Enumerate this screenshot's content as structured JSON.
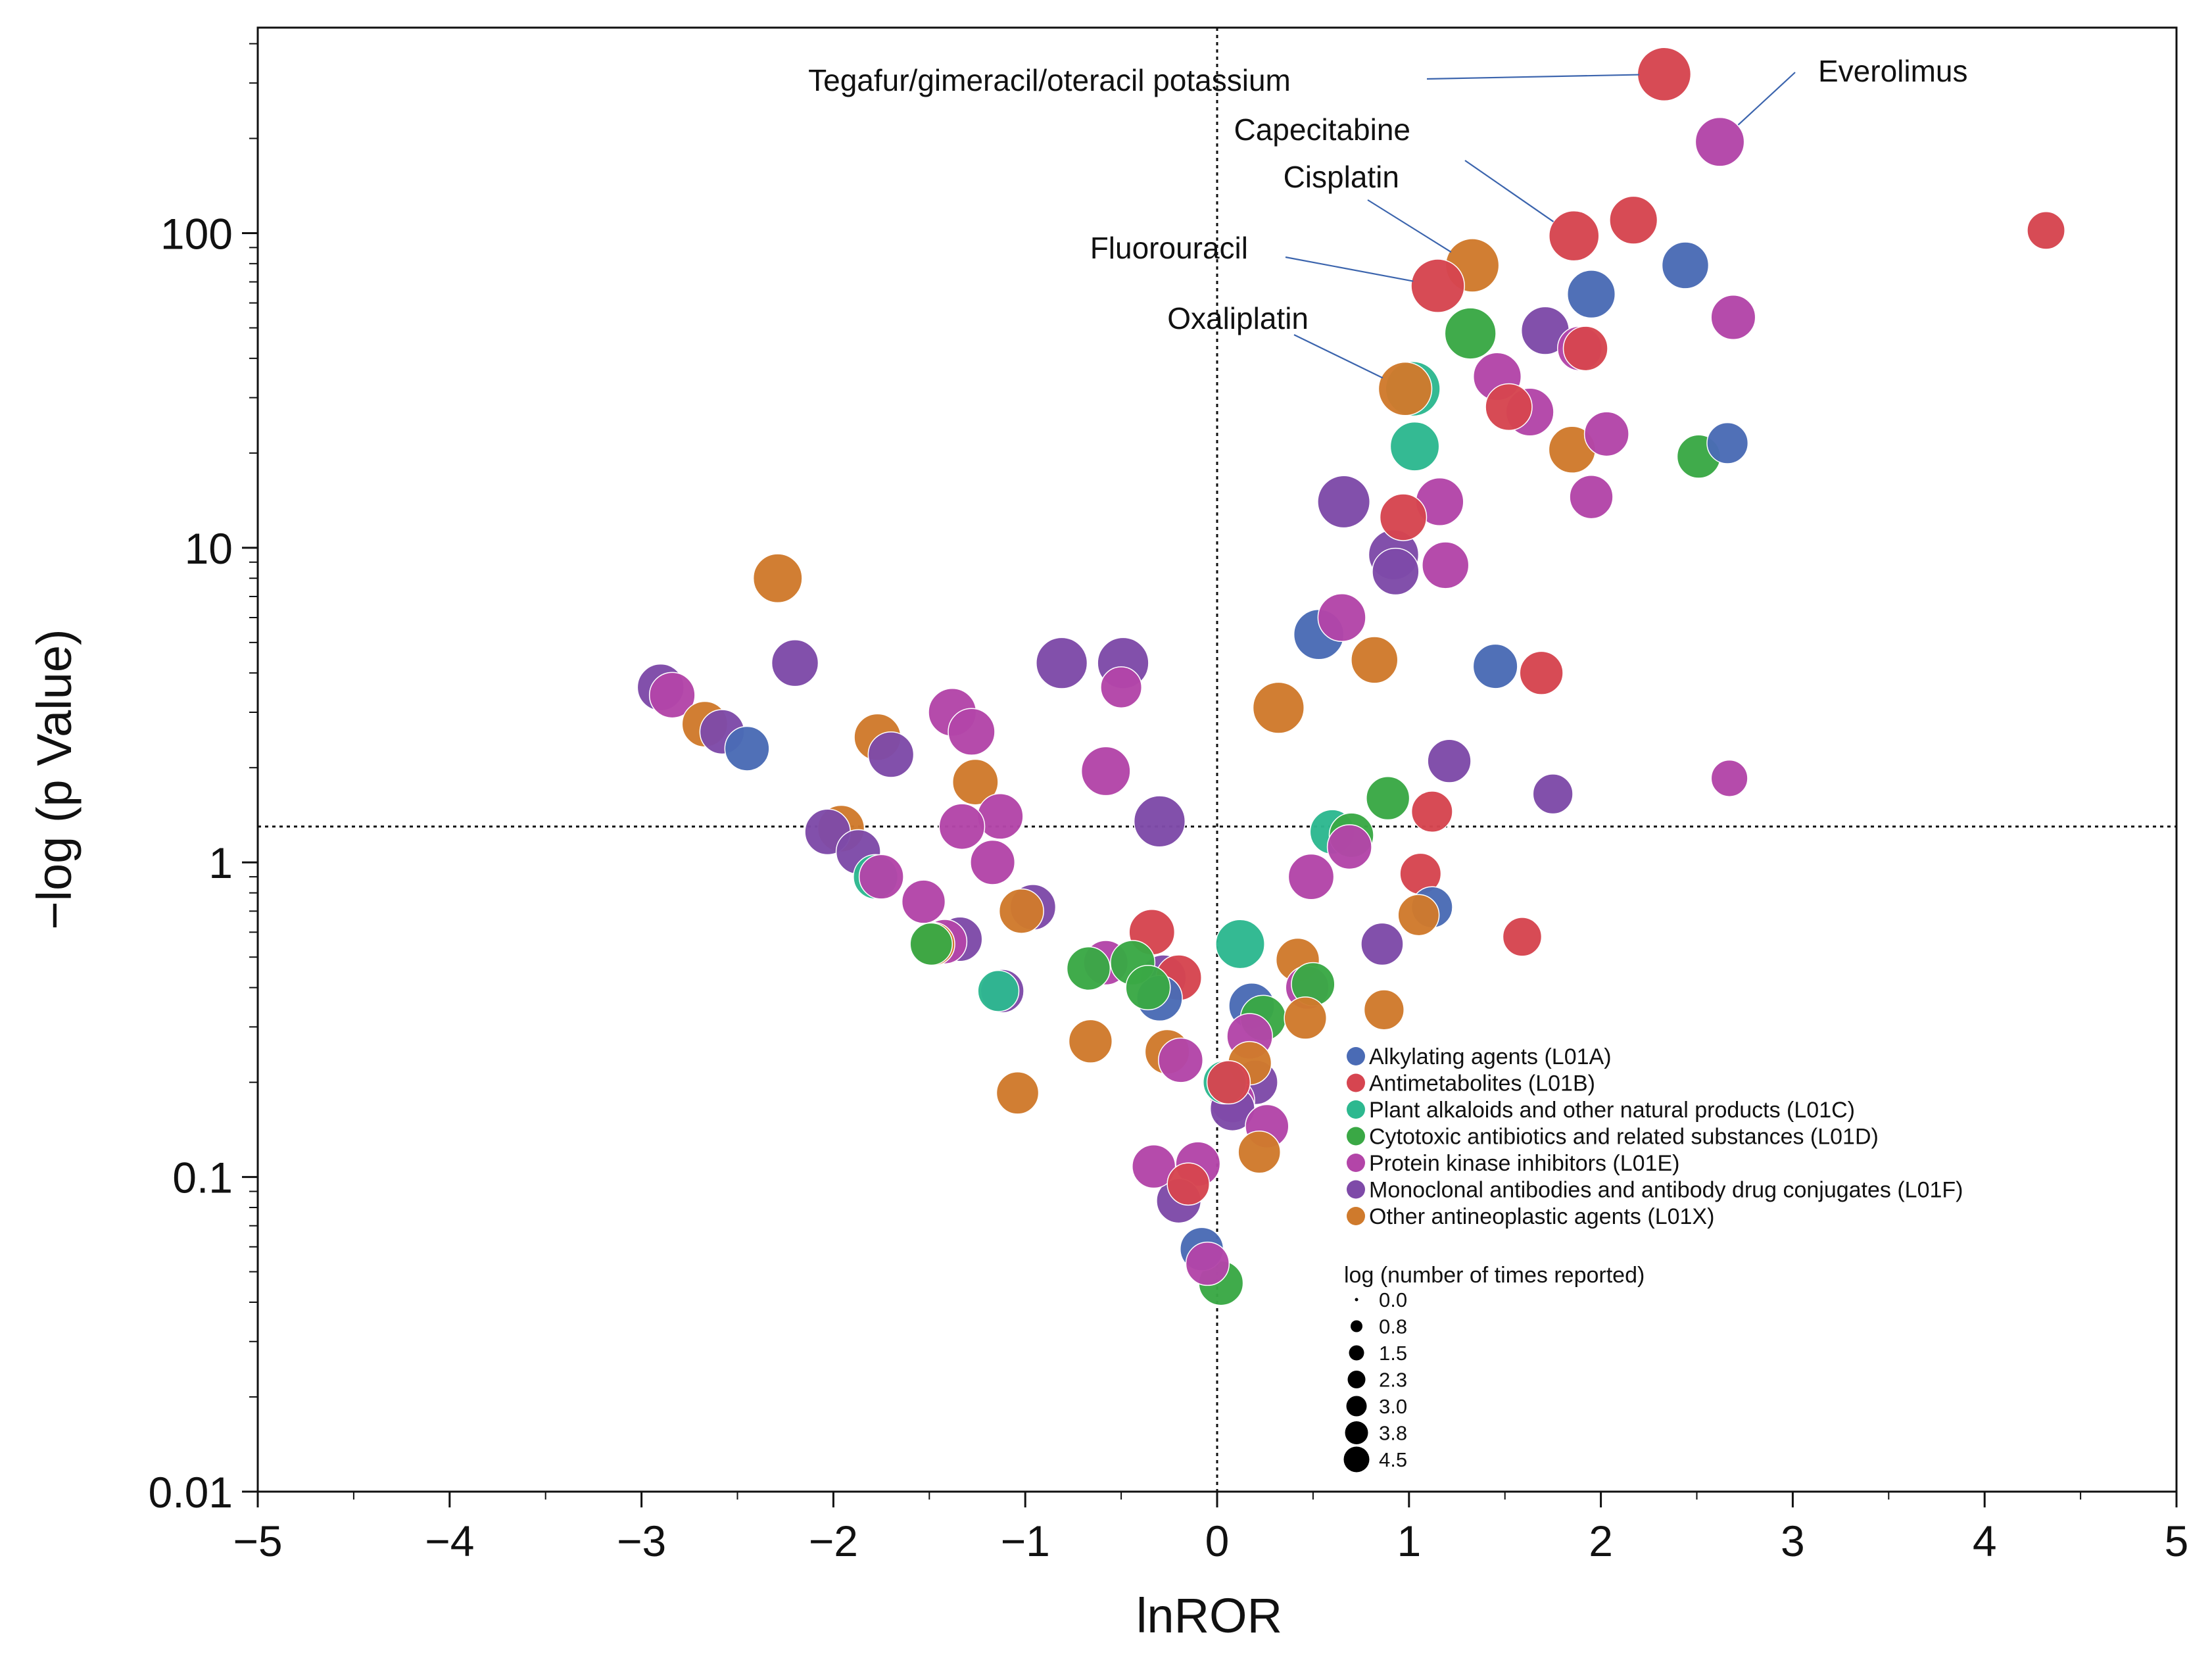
{
  "chart_data": {
    "type": "scatter",
    "subtype": "volcano-bubble",
    "title": "",
    "xlabel": "lnROR",
    "ylabel": "−log (p Value)",
    "xlim": [
      -5,
      5
    ],
    "ylim": [
      0.01,
      450
    ],
    "yscale": "log",
    "x_ticks": [
      -5,
      -4,
      -3,
      -2,
      -1,
      0,
      1,
      2,
      3,
      4,
      5
    ],
    "x_tick_labels": [
      "−5",
      "−4",
      "−3",
      "−2",
      "−1",
      "0",
      "1",
      "2",
      "3",
      "4",
      "5"
    ],
    "y_ticks": [
      0.01,
      0.1,
      1,
      10,
      100
    ],
    "y_tick_labels": [
      "0.01",
      "0.1",
      "1",
      "10",
      "100"
    ],
    "reference_lines": {
      "x": 0,
      "y": 1.3
    },
    "grid": false,
    "categories": [
      {
        "code": "L01A",
        "label": "Alkylating agents (L01A)",
        "color": "#4a6bb5"
      },
      {
        "code": "L01B",
        "label": "Antimetabolites (L01B)",
        "color": "#d64550"
      },
      {
        "code": "L01C",
        "label": "Plant alkaloids and other natural products (L01C)",
        "color": "#2db88f"
      },
      {
        "code": "L01D",
        "label": "Cytotoxic antibiotics and related substances (L01D)",
        "color": "#3aa845"
      },
      {
        "code": "L01E",
        "label": "Protein kinase inhibitors (L01E)",
        "color": "#b345a8"
      },
      {
        "code": "L01F",
        "label": "Monoclonal antibodies and antibody drug conjugates (L01F)",
        "color": "#7e4aa8"
      },
      {
        "code": "L01X",
        "label": "Other antineoplastic agents (L01X)",
        "color": "#cf7a2c"
      }
    ],
    "size_legend": {
      "title": "log (number of times reported)",
      "values": [
        "0.0",
        "0.8",
        "1.5",
        "2.3",
        "3.0",
        "3.8",
        "4.5"
      ]
    },
    "legend_position": "lower-center",
    "annotations": [
      {
        "text": "Tegafur/gimeracil/oteracil potassium",
        "x": 2.33,
        "y": 320
      },
      {
        "text": "Everolimus",
        "x": 2.62,
        "y": 195
      },
      {
        "text": "Capecitabine",
        "x": 1.86,
        "y": 98
      },
      {
        "text": "Cisplatin",
        "x": 1.33,
        "y": 79
      },
      {
        "text": "Fluorouracil",
        "x": 1.15,
        "y": 68
      },
      {
        "text": "Oxaliplatin",
        "x": 0.98,
        "y": 32
      }
    ],
    "points": [
      {
        "x": 2.33,
        "y": 320,
        "cat": "L01B",
        "size": 4.3
      },
      {
        "x": 2.62,
        "y": 195,
        "cat": "L01E",
        "size": 3.9
      },
      {
        "x": 4.32,
        "y": 102,
        "cat": "L01B",
        "size": 2.9
      },
      {
        "x": 2.17,
        "y": 110,
        "cat": "L01B",
        "size": 3.8
      },
      {
        "x": 1.86,
        "y": 98,
        "cat": "L01B",
        "size": 4.0
      },
      {
        "x": 2.44,
        "y": 79,
        "cat": "L01A",
        "size": 3.7
      },
      {
        "x": 1.33,
        "y": 79,
        "cat": "L01X",
        "size": 4.3
      },
      {
        "x": 1.15,
        "y": 68,
        "cat": "L01B",
        "size": 4.3
      },
      {
        "x": 1.95,
        "y": 64,
        "cat": "L01A",
        "size": 3.8
      },
      {
        "x": 2.69,
        "y": 54,
        "cat": "L01E",
        "size": 3.5
      },
      {
        "x": 1.32,
        "y": 48,
        "cat": "L01D",
        "size": 4.1
      },
      {
        "x": 1.71,
        "y": 49,
        "cat": "L01F",
        "size": 3.8
      },
      {
        "x": 1.89,
        "y": 43,
        "cat": "L01E",
        "size": 3.5
      },
      {
        "x": 1.92,
        "y": 43,
        "cat": "L01B",
        "size": 3.5
      },
      {
        "x": 1.46,
        "y": 35,
        "cat": "L01E",
        "size": 3.8
      },
      {
        "x": 1.02,
        "y": 32,
        "cat": "L01C",
        "size": 4.4
      },
      {
        "x": 0.98,
        "y": 32,
        "cat": "L01X",
        "size": 4.3
      },
      {
        "x": 1.52,
        "y": 28,
        "cat": "L01B",
        "size": 3.7
      },
      {
        "x": 1.63,
        "y": 27,
        "cat": "L01E",
        "size": 3.8
      },
      {
        "x": 2.03,
        "y": 23,
        "cat": "L01E",
        "size": 3.5
      },
      {
        "x": 2.66,
        "y": 21.5,
        "cat": "L01A",
        "size": 3.2
      },
      {
        "x": 1.03,
        "y": 21,
        "cat": "L01C",
        "size": 3.9
      },
      {
        "x": 1.85,
        "y": 20.5,
        "cat": "L01X",
        "size": 3.7
      },
      {
        "x": 2.51,
        "y": 19.5,
        "cat": "L01D",
        "size": 3.4
      },
      {
        "x": 1.95,
        "y": 14.5,
        "cat": "L01E",
        "size": 3.4
      },
      {
        "x": 0.66,
        "y": 14,
        "cat": "L01F",
        "size": 4.2
      },
      {
        "x": 1.16,
        "y": 14,
        "cat": "L01E",
        "size": 3.8
      },
      {
        "x": 0.97,
        "y": 12.5,
        "cat": "L01B",
        "size": 3.7
      },
      {
        "x": 0.92,
        "y": 9.5,
        "cat": "L01F",
        "size": 4.0
      },
      {
        "x": 1.19,
        "y": 8.8,
        "cat": "L01E",
        "size": 3.7
      },
      {
        "x": 0.93,
        "y": 8.4,
        "cat": "L01F",
        "size": 3.7
      },
      {
        "x": -2.29,
        "y": 8.0,
        "cat": "L01X",
        "size": 3.9
      },
      {
        "x": 0.65,
        "y": 6.0,
        "cat": "L01E",
        "size": 3.8
      },
      {
        "x": 0.53,
        "y": 5.3,
        "cat": "L01A",
        "size": 4.0
      },
      {
        "x": 1.45,
        "y": 4.2,
        "cat": "L01A",
        "size": 3.5
      },
      {
        "x": 0.82,
        "y": 4.4,
        "cat": "L01X",
        "size": 3.7
      },
      {
        "x": 1.69,
        "y": 4.0,
        "cat": "L01B",
        "size": 3.4
      },
      {
        "x": -0.81,
        "y": 4.3,
        "cat": "L01F",
        "size": 4.1
      },
      {
        "x": -0.49,
        "y": 4.3,
        "cat": "L01F",
        "size": 4.1
      },
      {
        "x": -2.2,
        "y": 4.3,
        "cat": "L01F",
        "size": 3.7
      },
      {
        "x": -0.5,
        "y": 3.6,
        "cat": "L01E",
        "size": 3.2
      },
      {
        "x": -2.9,
        "y": 3.6,
        "cat": "L01F",
        "size": 3.7
      },
      {
        "x": -2.84,
        "y": 3.4,
        "cat": "L01E",
        "size": 3.6
      },
      {
        "x": 0.32,
        "y": 3.1,
        "cat": "L01X",
        "size": 4.1
      },
      {
        "x": -1.38,
        "y": 3.0,
        "cat": "L01E",
        "size": 3.8
      },
      {
        "x": -2.67,
        "y": 2.75,
        "cat": "L01X",
        "size": 3.6
      },
      {
        "x": -1.28,
        "y": 2.6,
        "cat": "L01E",
        "size": 3.7
      },
      {
        "x": -2.58,
        "y": 2.6,
        "cat": "L01F",
        "size": 3.5
      },
      {
        "x": -1.77,
        "y": 2.5,
        "cat": "L01X",
        "size": 3.7
      },
      {
        "x": -2.45,
        "y": 2.3,
        "cat": "L01A",
        "size": 3.5
      },
      {
        "x": -1.7,
        "y": 2.2,
        "cat": "L01F",
        "size": 3.6
      },
      {
        "x": 1.21,
        "y": 2.1,
        "cat": "L01F",
        "size": 3.4
      },
      {
        "x": -0.58,
        "y": 1.95,
        "cat": "L01E",
        "size": 3.9
      },
      {
        "x": 2.67,
        "y": 1.85,
        "cat": "L01E",
        "size": 2.8
      },
      {
        "x": -1.26,
        "y": 1.8,
        "cat": "L01X",
        "size": 3.6
      },
      {
        "x": 1.75,
        "y": 1.65,
        "cat": "L01F",
        "size": 3.1
      },
      {
        "x": 0.89,
        "y": 1.6,
        "cat": "L01D",
        "size": 3.4
      },
      {
        "x": 1.12,
        "y": 1.45,
        "cat": "L01B",
        "size": 3.2
      },
      {
        "x": -1.13,
        "y": 1.4,
        "cat": "L01E",
        "size": 3.6
      },
      {
        "x": -0.3,
        "y": 1.35,
        "cat": "L01F",
        "size": 4.1
      },
      {
        "x": -1.33,
        "y": 1.3,
        "cat": "L01E",
        "size": 3.6
      },
      {
        "x": -1.96,
        "y": 1.28,
        "cat": "L01X",
        "size": 3.7
      },
      {
        "x": -2.03,
        "y": 1.25,
        "cat": "L01F",
        "size": 3.6
      },
      {
        "x": 0.6,
        "y": 1.25,
        "cat": "L01C",
        "size": 3.5
      },
      {
        "x": 0.7,
        "y": 1.22,
        "cat": "L01D",
        "size": 3.5
      },
      {
        "x": -1.87,
        "y": 1.08,
        "cat": "L01F",
        "size": 3.5
      },
      {
        "x": 0.69,
        "y": 1.12,
        "cat": "L01E",
        "size": 3.5
      },
      {
        "x": -1.17,
        "y": 1.0,
        "cat": "L01E",
        "size": 3.5
      },
      {
        "x": -1.78,
        "y": 0.9,
        "cat": "L01C",
        "size": 3.5
      },
      {
        "x": -1.75,
        "y": 0.9,
        "cat": "L01E",
        "size": 3.5
      },
      {
        "x": 0.49,
        "y": 0.9,
        "cat": "L01E",
        "size": 3.6
      },
      {
        "x": 1.06,
        "y": 0.92,
        "cat": "L01B",
        "size": 3.2
      },
      {
        "x": -1.53,
        "y": 0.75,
        "cat": "L01E",
        "size": 3.4
      },
      {
        "x": -1.02,
        "y": 0.7,
        "cat": "L01X",
        "size": 3.5
      },
      {
        "x": -0.96,
        "y": 0.72,
        "cat": "L01F",
        "size": 3.6
      },
      {
        "x": 1.12,
        "y": 0.72,
        "cat": "L01A",
        "size": 3.2
      },
      {
        "x": 1.05,
        "y": 0.68,
        "cat": "L01X",
        "size": 3.2
      },
      {
        "x": -0.34,
        "y": 0.6,
        "cat": "L01B",
        "size": 3.6
      },
      {
        "x": 1.59,
        "y": 0.58,
        "cat": "L01B",
        "size": 3.0
      },
      {
        "x": -1.34,
        "y": 0.57,
        "cat": "L01F",
        "size": 3.5
      },
      {
        "x": -1.42,
        "y": 0.56,
        "cat": "L01E",
        "size": 3.5
      },
      {
        "x": -1.48,
        "y": 0.55,
        "cat": "L01X",
        "size": 3.4
      },
      {
        "x": -1.49,
        "y": 0.55,
        "cat": "L01D",
        "size": 3.3
      },
      {
        "x": 0.12,
        "y": 0.55,
        "cat": "L01C",
        "size": 3.9
      },
      {
        "x": 0.86,
        "y": 0.55,
        "cat": "L01F",
        "size": 3.3
      },
      {
        "x": 0.42,
        "y": 0.49,
        "cat": "L01X",
        "size": 3.4
      },
      {
        "x": -0.58,
        "y": 0.48,
        "cat": "L01E",
        "size": 3.5
      },
      {
        "x": -0.44,
        "y": 0.48,
        "cat": "L01D",
        "size": 3.5
      },
      {
        "x": -0.67,
        "y": 0.46,
        "cat": "L01D",
        "size": 3.4
      },
      {
        "x": -0.28,
        "y": 0.43,
        "cat": "L01F",
        "size": 3.6
      },
      {
        "x": -0.2,
        "y": 0.43,
        "cat": "L01B",
        "size": 3.6
      },
      {
        "x": -0.36,
        "y": 0.4,
        "cat": "L01D",
        "size": 3.5
      },
      {
        "x": 0.47,
        "y": 0.4,
        "cat": "L01E",
        "size": 3.4
      },
      {
        "x": 0.5,
        "y": 0.41,
        "cat": "L01D",
        "size": 3.4
      },
      {
        "x": -1.14,
        "y": 0.39,
        "cat": "L01C",
        "size": 3.2
      },
      {
        "x": -1.12,
        "y": 0.39,
        "cat": "L01F",
        "size": 3.4
      },
      {
        "x": -0.3,
        "y": 0.37,
        "cat": "L01A",
        "size": 3.6
      },
      {
        "x": 0.18,
        "y": 0.35,
        "cat": "L01A",
        "size": 3.6
      },
      {
        "x": 0.87,
        "y": 0.34,
        "cat": "L01X",
        "size": 3.1
      },
      {
        "x": 0.24,
        "y": 0.32,
        "cat": "L01D",
        "size": 3.6
      },
      {
        "x": 0.46,
        "y": 0.32,
        "cat": "L01X",
        "size": 3.3
      },
      {
        "x": 0.17,
        "y": 0.28,
        "cat": "L01E",
        "size": 3.6
      },
      {
        "x": -0.66,
        "y": 0.27,
        "cat": "L01X",
        "size": 3.4
      },
      {
        "x": -0.26,
        "y": 0.25,
        "cat": "L01X",
        "size": 3.5
      },
      {
        "x": -0.19,
        "y": 0.235,
        "cat": "L01E",
        "size": 3.5
      },
      {
        "x": 0.17,
        "y": 0.23,
        "cat": "L01X",
        "size": 3.4
      },
      {
        "x": 0.04,
        "y": 0.2,
        "cat": "L01C",
        "size": 3.4
      },
      {
        "x": 0.06,
        "y": 0.2,
        "cat": "L01B",
        "size": 3.4
      },
      {
        "x": 0.2,
        "y": 0.2,
        "cat": "L01F",
        "size": 3.5
      },
      {
        "x": -1.04,
        "y": 0.185,
        "cat": "L01X",
        "size": 3.3
      },
      {
        "x": 0.08,
        "y": 0.175,
        "cat": "L01E",
        "size": 3.5
      },
      {
        "x": 0.08,
        "y": 0.165,
        "cat": "L01F",
        "size": 3.5
      },
      {
        "x": 0.26,
        "y": 0.145,
        "cat": "L01E",
        "size": 3.4
      },
      {
        "x": 0.22,
        "y": 0.12,
        "cat": "L01X",
        "size": 3.3
      },
      {
        "x": -0.1,
        "y": 0.11,
        "cat": "L01E",
        "size": 3.5
      },
      {
        "x": -0.33,
        "y": 0.108,
        "cat": "L01E",
        "size": 3.4
      },
      {
        "x": -0.15,
        "y": 0.095,
        "cat": "L01B",
        "size": 3.3
      },
      {
        "x": -0.2,
        "y": 0.084,
        "cat": "L01F",
        "size": 3.5
      },
      {
        "x": -0.08,
        "y": 0.059,
        "cat": "L01A",
        "size": 3.4
      },
      {
        "x": -0.05,
        "y": 0.053,
        "cat": "L01E",
        "size": 3.4
      },
      {
        "x": 0.02,
        "y": 0.046,
        "cat": "L01D",
        "size": 3.5
      }
    ]
  }
}
